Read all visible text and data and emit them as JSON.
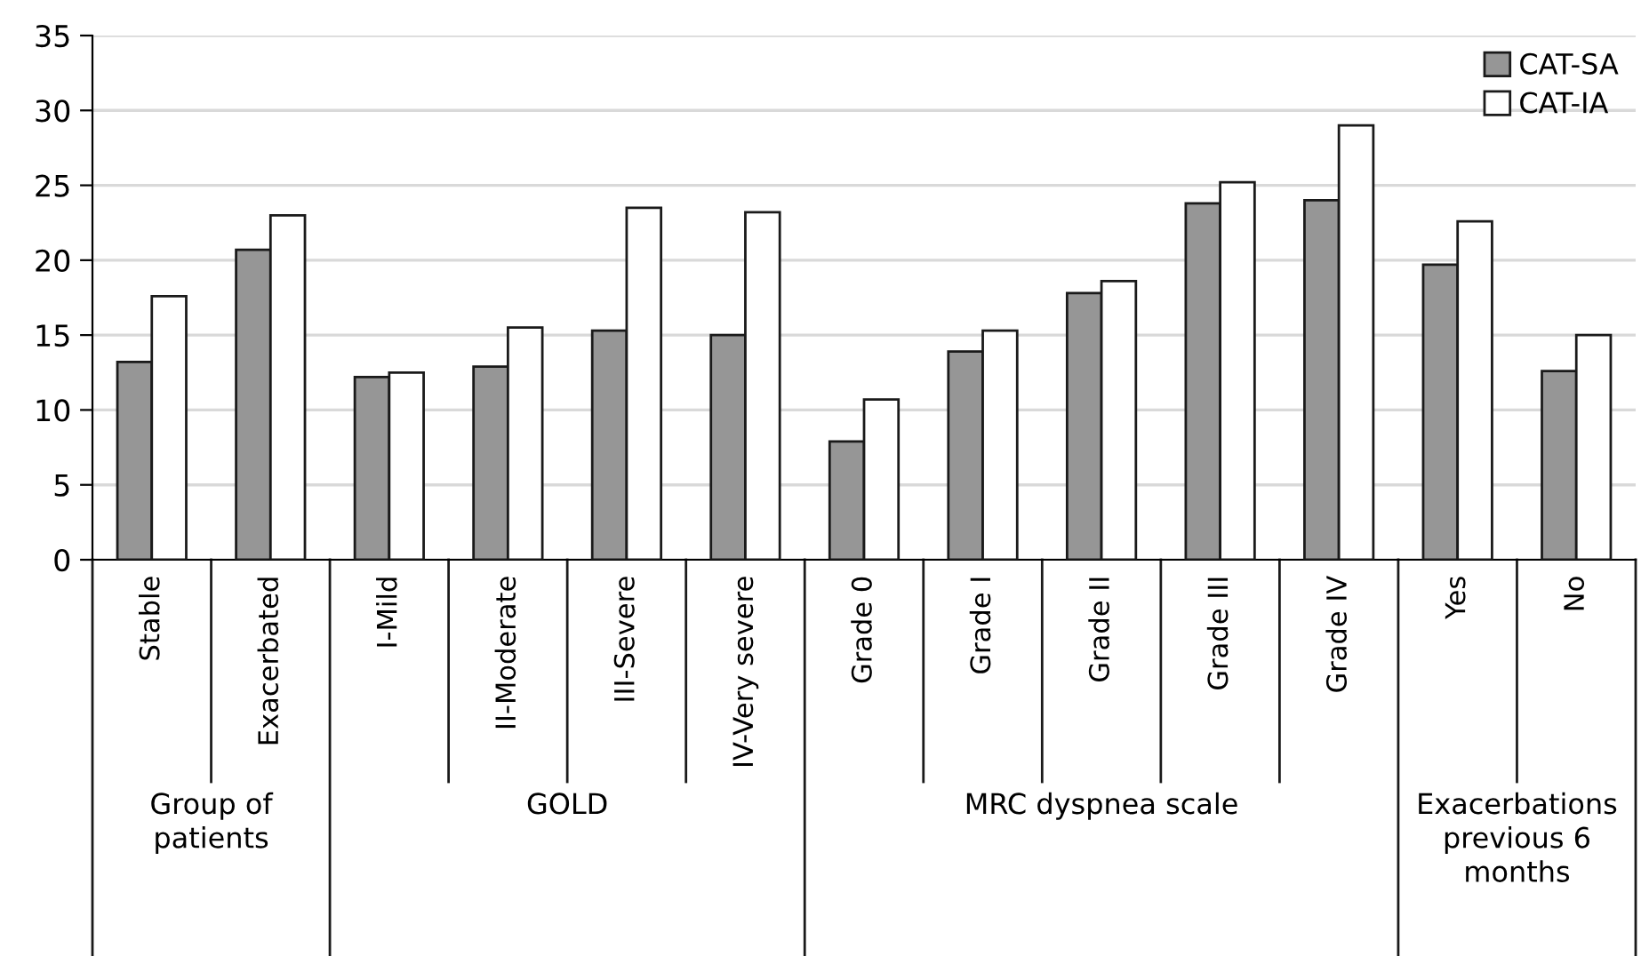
{
  "chart_data": {
    "type": "bar",
    "categories": [
      "Stable",
      "Exacerbated",
      "I-Mild",
      "II-Moderate",
      "III-Severe",
      "IV-Very severe",
      "Grade 0",
      "Grade I",
      "Grade II",
      "Grade III",
      "Grade IV",
      "Yes",
      "No"
    ],
    "series": [
      {
        "name": "CAT-SA",
        "color": "#969696",
        "values": [
          13.2,
          20.7,
          12.2,
          12.9,
          15.3,
          15.0,
          7.9,
          13.9,
          17.8,
          23.8,
          24.0,
          19.7,
          12.6
        ]
      },
      {
        "name": "CAT-IA",
        "color": "#ffffff",
        "values": [
          17.6,
          23.0,
          12.5,
          15.5,
          23.5,
          23.2,
          10.7,
          15.3,
          18.6,
          25.2,
          29.0,
          22.6,
          15.0
        ]
      }
    ],
    "annotations": [
      "Group of\npatients",
      "GOLD",
      "MRC dyspnea scale",
      "Exacerbations\nprevious 6\nmonths"
    ],
    "ylim": [
      0,
      35
    ],
    "yticks": [
      0,
      5,
      10,
      15,
      20,
      25,
      30,
      35
    ],
    "grid": "y",
    "legend": "top right"
  }
}
